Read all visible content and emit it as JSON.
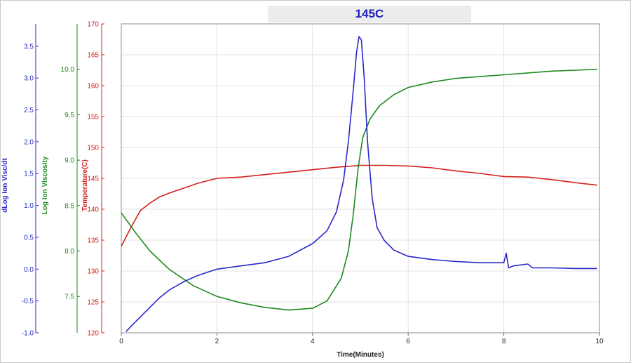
{
  "chart_data": {
    "type": "line",
    "title": "145C",
    "xlabel": "Time(Minutes)",
    "xlim": [
      0,
      10
    ],
    "x_ticks": [
      "0",
      "2",
      "4",
      "6",
      "8",
      "10"
    ],
    "grid": true,
    "axes": [
      {
        "id": "temp",
        "label": "Temperature(C)",
        "color": "#d42020",
        "range": [
          120,
          170
        ],
        "ticks": [
          "120",
          "125",
          "130",
          "135",
          "140",
          "145",
          "150",
          "155",
          "160",
          "165",
          "170"
        ]
      },
      {
        "id": "lv",
        "label": "Log Ion Viscosity",
        "color": "#1d8a1d",
        "range": [
          7.1,
          10.5
        ],
        "ticks": [
          "7.5",
          "8.0",
          "8.5",
          "9.0",
          "9.5",
          "10.0"
        ]
      },
      {
        "id": "dlv",
        "label": "dLog Ion Visc/dt",
        "color": "#2828c8",
        "range": [
          -1.0,
          3.85
        ],
        "ticks": [
          "-1.0",
          "-0.5",
          "0.0",
          "0.5",
          "1.0",
          "1.5",
          "2.0",
          "2.5",
          "3.0",
          "3.5"
        ]
      }
    ],
    "series": [
      {
        "axis": "temp",
        "color": "#d42020",
        "x": [
          0,
          0.2,
          0.4,
          0.6,
          0.8,
          1.0,
          1.3,
          1.6,
          2.0,
          2.5,
          3.0,
          3.5,
          4.0,
          4.5,
          5.0,
          5.5,
          6.0,
          6.5,
          7.0,
          7.5,
          8.0,
          8.5,
          9.0,
          9.5,
          9.95
        ],
        "y": [
          134,
          137,
          139.8,
          141,
          142,
          142.6,
          143.4,
          144.2,
          145,
          145.2,
          145.6,
          146,
          146.4,
          146.8,
          147.1,
          147.1,
          147,
          146.7,
          146.2,
          145.8,
          145.3,
          145.2,
          144.8,
          144.3,
          143.9
        ]
      },
      {
        "axis": "lv",
        "color": "#1d8a1d",
        "x": [
          0,
          0.3,
          0.6,
          1.0,
          1.5,
          2.0,
          2.5,
          3.0,
          3.5,
          4.0,
          4.3,
          4.6,
          4.75,
          4.85,
          4.95,
          5.05,
          5.2,
          5.4,
          5.7,
          6.0,
          6.5,
          7.0,
          7.5,
          8.0,
          8.5,
          9.0,
          9.5,
          9.95
        ],
        "y": [
          8.42,
          8.2,
          8.0,
          7.8,
          7.62,
          7.5,
          7.43,
          7.38,
          7.35,
          7.37,
          7.45,
          7.7,
          8.0,
          8.4,
          8.9,
          9.25,
          9.45,
          9.6,
          9.72,
          9.8,
          9.86,
          9.9,
          9.92,
          9.94,
          9.96,
          9.98,
          9.99,
          10.0
        ]
      },
      {
        "axis": "dlv",
        "color": "#2828c8",
        "x": [
          0.1,
          0.2,
          0.4,
          0.6,
          0.8,
          1.0,
          1.3,
          1.6,
          2.0,
          2.5,
          3.0,
          3.5,
          4.0,
          4.3,
          4.5,
          4.65,
          4.75,
          4.85,
          4.92,
          4.97,
          5.02,
          5.08,
          5.15,
          5.25,
          5.35,
          5.5,
          5.7,
          6.0,
          6.5,
          7.0,
          7.5,
          8.0,
          8.05,
          8.1,
          8.2,
          8.5,
          8.6,
          9.0,
          9.5,
          9.95
        ],
        "y": [
          -0.98,
          -0.9,
          -0.75,
          -0.6,
          -0.45,
          -0.33,
          -0.2,
          -0.1,
          0.0,
          0.05,
          0.1,
          0.2,
          0.4,
          0.6,
          0.9,
          1.4,
          2.0,
          2.8,
          3.4,
          3.65,
          3.6,
          3.0,
          2.0,
          1.1,
          0.65,
          0.45,
          0.3,
          0.2,
          0.15,
          0.12,
          0.1,
          0.1,
          0.25,
          0.02,
          0.05,
          0.08,
          0.02,
          0.02,
          0.01,
          0.01
        ]
      }
    ]
  }
}
